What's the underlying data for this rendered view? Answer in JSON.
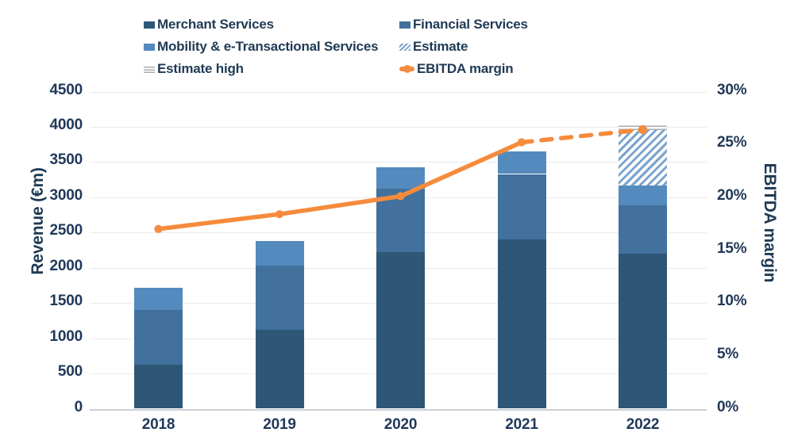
{
  "chart_data": {
    "type": "bar",
    "subtype": "stacked-bars-with-line-overlay",
    "categories": [
      "2018",
      "2019",
      "2020",
      "2021",
      "2022"
    ],
    "series": [
      {
        "name": "Merchant Services",
        "swatch": "solid",
        "color": "#2e5777",
        "values": [
          620,
          1119,
          2220,
          2400,
          2195
        ]
      },
      {
        "name": "Financial Services",
        "swatch": "solid",
        "color": "#41719c",
        "values": [
          780,
          912,
          900,
          930,
          695
        ]
      },
      {
        "name": "Mobility & e-Transactional Services",
        "swatch": "solid",
        "color": "#548abd",
        "values": [
          320,
          351,
          310,
          325,
          280
        ]
      },
      {
        "name": "Estimate",
        "swatch": "hatch",
        "color": "#79a3cd",
        "values": [
          0,
          0,
          0,
          0,
          780
        ]
      },
      {
        "name": "Estimate high",
        "swatch": "hlines",
        "color": "#a9acb0",
        "values": [
          0,
          0,
          0,
          0,
          80
        ]
      }
    ],
    "line_series": {
      "name": "EBITDA margin",
      "color": "#f58b3c",
      "values_percent": [
        17.0,
        18.4,
        20.1,
        25.2,
        26.4
      ],
      "solid_through_index": 3,
      "dashed_from": "2021",
      "note": "solid line with round markers 2018-2021, dashed estimate segment 2021-2022"
    },
    "ylabel_left": "Revenue (€m)",
    "ylabel_right": "EBITDA margin",
    "ylim_left": [
      0,
      4500
    ],
    "ylim_right": [
      0,
      30
    ],
    "yticks_left": [
      0,
      500,
      1000,
      1500,
      2000,
      2500,
      3000,
      3500,
      4000,
      4500
    ],
    "yticks_right_labels": [
      "0%",
      "5%",
      "10%",
      "15%",
      "20%",
      "25%",
      "30%"
    ],
    "yticks_right_values": [
      0,
      5,
      10,
      15,
      20,
      25,
      30
    ],
    "grid": "horizontal",
    "legend_position": "top",
    "legend_order": [
      "Merchant Services",
      "Financial Services",
      "Mobility & e-Transactional Services",
      "Estimate",
      "Estimate high",
      "EBITDA margin"
    ]
  },
  "colors": {
    "merchant": "#2e5777",
    "financial": "#41719c",
    "mobility": "#548abd",
    "hatch_stripe": "#79a3cd",
    "estimate_high_line": "#a9acb0",
    "ebitda_line": "#f58b3c",
    "axis_text": "#21395a",
    "gridline": "#e9eaeb",
    "axis_line": "#cdd1d5"
  }
}
